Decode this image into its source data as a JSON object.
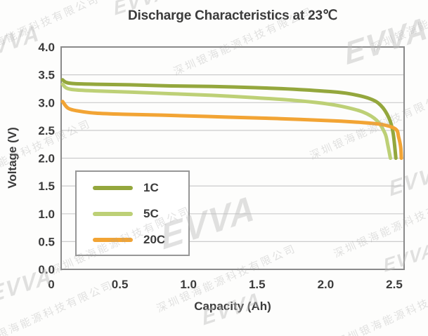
{
  "watermark": {
    "company": "深圳银海能源科技有限公司",
    "logo": "EVVA"
  },
  "chart_data": {
    "type": "line",
    "title": "Discharge Characteristics at 23℃",
    "xlabel": "Capacity (Ah)",
    "ylabel": "Voltage (V)",
    "xlim": [
      0,
      2.5
    ],
    "ylim": [
      0.0,
      4.0
    ],
    "xtick_values": [
      0,
      0.5,
      1.0,
      1.5,
      2.0,
      2.5
    ],
    "xtick_labels": [
      "0",
      "0.5",
      "1.0",
      "1.5",
      "2.0",
      "2.5"
    ],
    "ytick_values": [
      0.0,
      0.5,
      1.0,
      1.5,
      2.0,
      2.5,
      3.0,
      3.5,
      4.0
    ],
    "ytick_labels": [
      "0.0",
      "0.5",
      "1.0",
      "1.5",
      "2.0",
      "2.5",
      "3.0",
      "3.5",
      "4.0"
    ],
    "grid": "horizontal",
    "legend_position": "inside-lower-left",
    "style": {
      "text_color": "#3b3b3b",
      "grid_color": "#cccccc",
      "border_color": "#8a8a8a",
      "background": "#fdfdfc",
      "line_width": 5
    },
    "series": [
      {
        "name": "1C",
        "color": "#94a73d",
        "points": [
          [
            0.01,
            3.41
          ],
          [
            0.04,
            3.36
          ],
          [
            0.1,
            3.34
          ],
          [
            0.25,
            3.33
          ],
          [
            0.5,
            3.32
          ],
          [
            0.8,
            3.3
          ],
          [
            1.1,
            3.29
          ],
          [
            1.4,
            3.27
          ],
          [
            1.7,
            3.24
          ],
          [
            1.95,
            3.2
          ],
          [
            2.1,
            3.16
          ],
          [
            2.25,
            3.07
          ],
          [
            2.33,
            2.95
          ],
          [
            2.39,
            2.72
          ],
          [
            2.42,
            2.45
          ],
          [
            2.44,
            2.0
          ]
        ]
      },
      {
        "name": "5C",
        "color": "#bdd076",
        "points": [
          [
            0.01,
            3.33
          ],
          [
            0.04,
            3.26
          ],
          [
            0.1,
            3.23
          ],
          [
            0.25,
            3.21
          ],
          [
            0.5,
            3.19
          ],
          [
            0.8,
            3.16
          ],
          [
            1.1,
            3.13
          ],
          [
            1.4,
            3.09
          ],
          [
            1.7,
            3.04
          ],
          [
            1.9,
            2.99
          ],
          [
            2.05,
            2.93
          ],
          [
            2.2,
            2.83
          ],
          [
            2.3,
            2.68
          ],
          [
            2.36,
            2.45
          ],
          [
            2.38,
            2.25
          ],
          [
            2.4,
            2.0
          ]
        ]
      },
      {
        "name": "20C",
        "color": "#f2a434",
        "points": [
          [
            0.01,
            3.02
          ],
          [
            0.05,
            2.9
          ],
          [
            0.12,
            2.85
          ],
          [
            0.25,
            2.81
          ],
          [
            0.45,
            2.79
          ],
          [
            0.8,
            2.77
          ],
          [
            1.2,
            2.74
          ],
          [
            1.6,
            2.71
          ],
          [
            2.0,
            2.67
          ],
          [
            2.2,
            2.64
          ],
          [
            2.35,
            2.6
          ],
          [
            2.44,
            2.52
          ],
          [
            2.46,
            2.38
          ],
          [
            2.475,
            2.2
          ],
          [
            2.48,
            2.0
          ]
        ]
      }
    ]
  }
}
